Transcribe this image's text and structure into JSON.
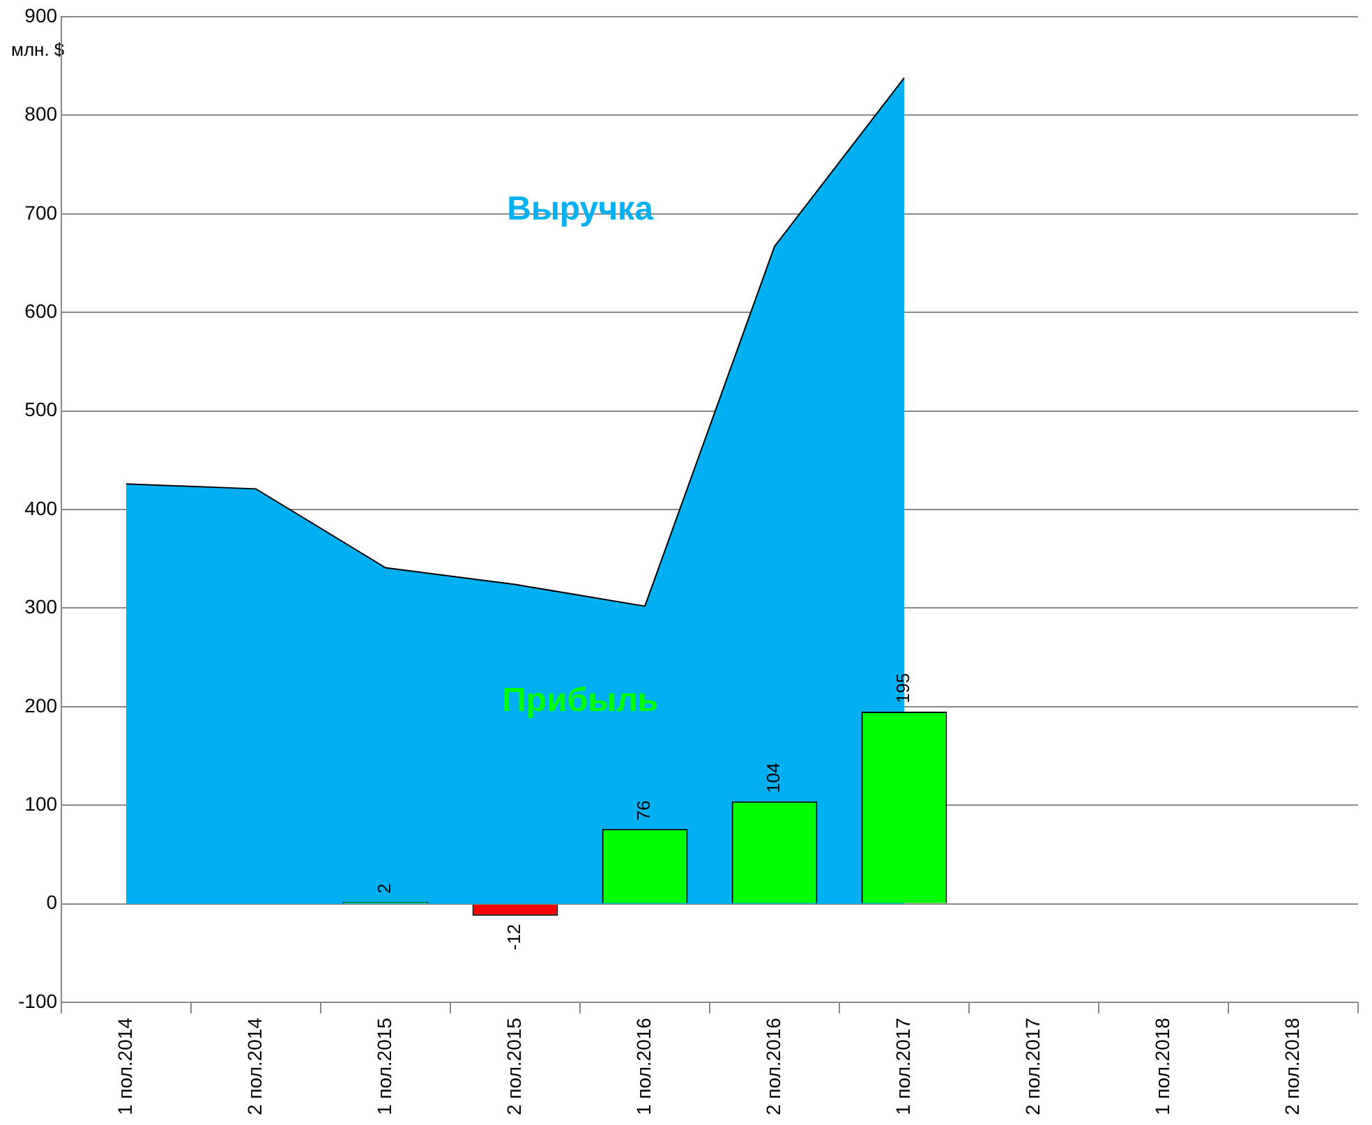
{
  "chart_data": {
    "type": "bar",
    "ylabel": "млн. $",
    "categories": [
      "1 пол.2014",
      "2 пол.2014",
      "1 пол.2015",
      "2 пол.2015",
      "1 пол.2016",
      "2 пол.2016",
      "1 пол.2017",
      "2 пол.2017",
      "1 пол.2018",
      "2 пол.2018"
    ],
    "series": [
      {
        "name": "Выручка",
        "type": "area",
        "color": "#00b0f0",
        "values": [
          426,
          421,
          341,
          324,
          302,
          667,
          838,
          null,
          null,
          null
        ]
      },
      {
        "name": "Прибыль",
        "colors": [
          "#00ff00",
          "#00ff00",
          "#00ff00",
          "#ff0000",
          "#00ff00",
          "#00ff00",
          "#00ff00",
          "#00ff00",
          "#00ff00",
          "#00ff00"
        ],
        "values": [
          null,
          null,
          2,
          -12,
          76,
          104,
          195,
          null,
          null,
          null
        ],
        "value_labels": [
          null,
          null,
          "2",
          "-12",
          "76",
          "104",
          "195",
          null,
          null,
          null
        ]
      }
    ],
    "ylim": [
      -100,
      900
    ],
    "yticks": [
      -100,
      0,
      100,
      200,
      300,
      400,
      500,
      600,
      700,
      800,
      900
    ],
    "grid": "y",
    "legend": false
  }
}
